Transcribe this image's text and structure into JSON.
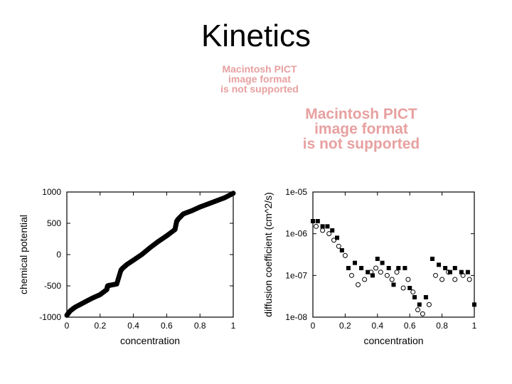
{
  "slide": {
    "title": "Kinetics"
  },
  "placeholders": [
    {
      "lines": [
        "Macintosh PICT",
        "image format",
        "is not supported"
      ],
      "color": "#e8a0a0"
    },
    {
      "lines": [
        "Macintosh PICT",
        "image format",
        "is not supported"
      ],
      "color": "#e8a0a0"
    }
  ],
  "chart_data": [
    {
      "type": "scatter",
      "title": "",
      "xlabel": "concentration",
      "ylabel": "chemical potential",
      "xlim": [
        0,
        1
      ],
      "ylim": [
        -1000,
        1000
      ],
      "xticks": [
        "0",
        "0.2",
        "0.4",
        "0.6",
        "0.8",
        "1"
      ],
      "yticks": [
        "1000",
        "500",
        "0",
        "-500",
        "-1000"
      ],
      "grid": false,
      "series": [
        {
          "marker": "open-circle-dense",
          "x": [
            0.0,
            0.02,
            0.05,
            0.1,
            0.15,
            0.2,
            0.24,
            0.245,
            0.26,
            0.3,
            0.325,
            0.335,
            0.36,
            0.4,
            0.45,
            0.5,
            0.55,
            0.6,
            0.65,
            0.66,
            0.67,
            0.7,
            0.75,
            0.8,
            0.85,
            0.9,
            0.95,
            1.0
          ],
          "y": [
            -970,
            -900,
            -840,
            -770,
            -700,
            -640,
            -560,
            -500,
            -490,
            -470,
            -250,
            -220,
            -160,
            -90,
            0,
            110,
            210,
            300,
            400,
            530,
            570,
            650,
            700,
            760,
            810,
            860,
            910,
            980
          ]
        }
      ]
    },
    {
      "type": "scatter",
      "title": "",
      "xlabel": "concentration",
      "ylabel": "diffusion coefficient (cm^2/s)",
      "xlim": [
        0,
        1
      ],
      "ylim": [
        1e-08,
        1e-05
      ],
      "yscale": "log",
      "xticks": [
        "0",
        "0.2",
        "0.4",
        "0.6",
        "0.8",
        "1"
      ],
      "yticks": [
        "1e-05",
        "1e-06",
        "1e-07",
        "1e-08"
      ],
      "grid": false,
      "series": [
        {
          "marker": "filled-square",
          "x": [
            0.0,
            0.03,
            0.06,
            0.09,
            0.12,
            0.15,
            0.18,
            0.22,
            0.26,
            0.3,
            0.34,
            0.37,
            0.4,
            0.43,
            0.47,
            0.5,
            0.53,
            0.57,
            0.6,
            0.63,
            0.66,
            0.7,
            0.74,
            0.78,
            0.82,
            0.85,
            0.88,
            0.92,
            0.96,
            1.0
          ],
          "y": [
            2e-06,
            2e-06,
            1.5e-06,
            1.5e-06,
            1.2e-06,
            8e-07,
            4e-07,
            1.5e-07,
            2e-07,
            1.5e-07,
            1.2e-07,
            1e-07,
            2.5e-07,
            2e-07,
            1.5e-07,
            6e-08,
            1.5e-07,
            1.5e-07,
            5e-08,
            3e-08,
            2e-08,
            3e-08,
            2.5e-07,
            1.8e-07,
            1.5e-07,
            1.2e-07,
            1.5e-07,
            1.2e-07,
            1.2e-07,
            2e-08
          ]
        },
        {
          "marker": "open-circle",
          "x": [
            0.02,
            0.06,
            0.1,
            0.13,
            0.16,
            0.2,
            0.24,
            0.28,
            0.32,
            0.36,
            0.39,
            0.42,
            0.46,
            0.49,
            0.52,
            0.56,
            0.59,
            0.62,
            0.65,
            0.68,
            0.72,
            0.76,
            0.8,
            0.84,
            0.88,
            0.93,
            0.97
          ],
          "y": [
            1.5e-06,
            1.2e-06,
            1e-06,
            7e-07,
            5e-07,
            3e-07,
            1e-07,
            6e-08,
            8e-08,
            1.2e-07,
            1.5e-07,
            1.2e-07,
            1e-07,
            8e-08,
            1.2e-07,
            5e-08,
            8e-08,
            4e-08,
            1.5e-08,
            1.2e-08,
            2e-08,
            1e-07,
            8e-08,
            1.2e-07,
            8e-08,
            1e-07,
            8e-08
          ]
        }
      ]
    }
  ]
}
